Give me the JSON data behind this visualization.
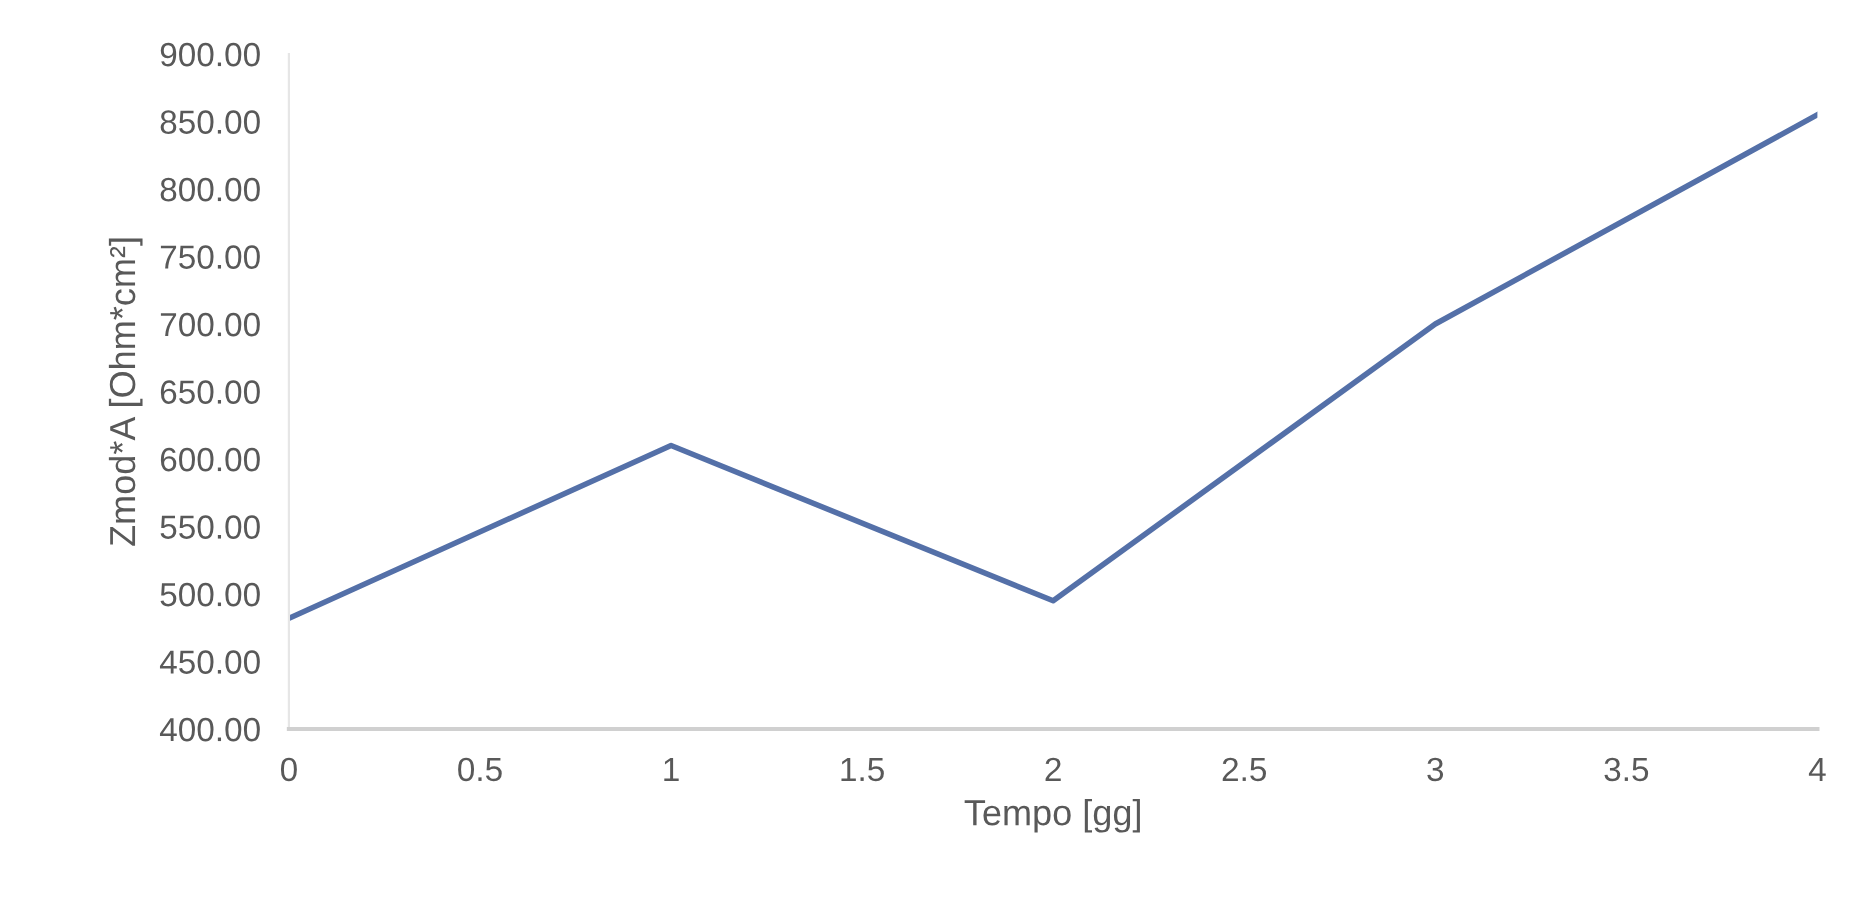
{
  "chart_data": {
    "type": "line",
    "xlabel": "Tempo [gg]",
    "ylabel": "Zmod*A [Ohm*cm²]",
    "x": [
      0,
      1,
      2,
      3,
      4
    ],
    "series": [
      {
        "color": "#5470a8",
        "values": [
          482,
          610,
          495,
          700,
          855
        ]
      }
    ],
    "xlim": [
      0,
      4
    ],
    "xticks": [
      0,
      0.5,
      1,
      1.5,
      2,
      2.5,
      3,
      3.5,
      4
    ],
    "ylim": [
      400,
      900
    ],
    "yticks": [
      {
        "value": 400,
        "label": "400.00"
      },
      {
        "value": 450,
        "label": "450.00"
      },
      {
        "value": 500,
        "label": "500.00"
      },
      {
        "value": 550,
        "label": "550.00"
      },
      {
        "value": 600,
        "label": "600.00"
      },
      {
        "value": 650,
        "label": "650.00"
      },
      {
        "value": 700,
        "label": "700.00"
      },
      {
        "value": 750,
        "label": "750.00"
      },
      {
        "value": 800,
        "label": "800.00"
      },
      {
        "value": 850,
        "label": "850.00"
      },
      {
        "value": 900,
        "label": "900.00"
      }
    ],
    "grid": false,
    "marker": "none",
    "line_style": "solid"
  }
}
